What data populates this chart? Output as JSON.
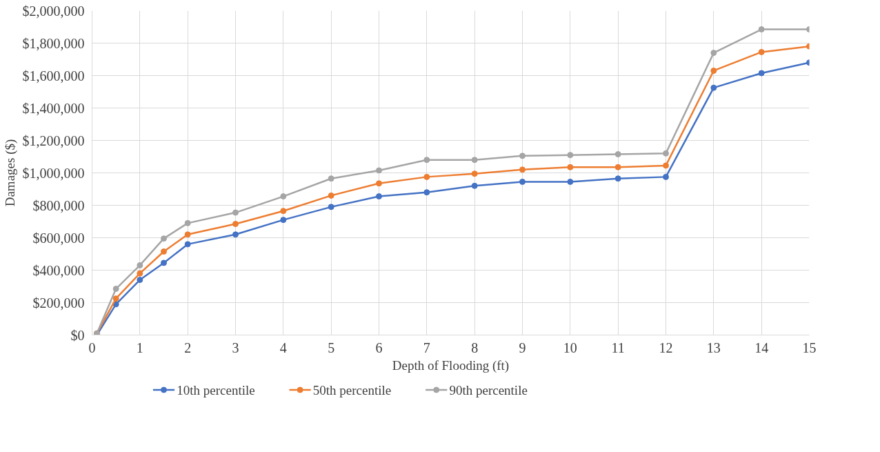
{
  "chart_data": {
    "type": "line",
    "xlabel": "Depth of Flooding (ft)",
    "ylabel": "Damages ($)",
    "x": [
      0.1,
      0.5,
      1,
      1.5,
      2,
      3,
      4,
      5,
      6,
      7,
      8,
      9,
      10,
      11,
      12,
      13,
      14,
      15
    ],
    "xlim": [
      0,
      15
    ],
    "xticks": [
      0,
      1,
      2,
      3,
      4,
      5,
      6,
      7,
      8,
      9,
      10,
      11,
      12,
      13,
      14,
      15
    ],
    "ylim": [
      0,
      2000000
    ],
    "yticks": [
      {
        "value": 0,
        "label": "$0"
      },
      {
        "value": 200000,
        "label": "$200,000"
      },
      {
        "value": 400000,
        "label": "$400,000"
      },
      {
        "value": 600000,
        "label": "$600,000"
      },
      {
        "value": 800000,
        "label": "$800,000"
      },
      {
        "value": 1000000,
        "label": "$1,000,000"
      },
      {
        "value": 1200000,
        "label": "$1,200,000"
      },
      {
        "value": 1400000,
        "label": "$1,400,000"
      },
      {
        "value": 1600000,
        "label": "$1,600,000"
      },
      {
        "value": 1800000,
        "label": "$1,800,000"
      },
      {
        "value": 2000000,
        "label": "$2,000,000"
      }
    ],
    "grid": true,
    "legend": "bottom",
    "marker": "circle",
    "line_style": "solid",
    "series": [
      {
        "name": "10th percentile",
        "color": "#4472c4",
        "values": [
          0,
          190000,
          340000,
          445000,
          560000,
          620000,
          710000,
          790000,
          855000,
          880000,
          920000,
          945000,
          945000,
          965000,
          975000,
          1525000,
          1615000,
          1680000
        ]
      },
      {
        "name": "50th percentile",
        "color": "#ed7d31",
        "values": [
          10000,
          225000,
          380000,
          515000,
          620000,
          685000,
          765000,
          860000,
          935000,
          975000,
          995000,
          1020000,
          1035000,
          1035000,
          1045000,
          1630000,
          1745000,
          1780000
        ]
      },
      {
        "name": "90th percentile",
        "color": "#a5a5a5",
        "values": [
          10000,
          285000,
          430000,
          595000,
          690000,
          755000,
          855000,
          965000,
          1015000,
          1080000,
          1080000,
          1105000,
          1110000,
          1115000,
          1120000,
          1740000,
          1885000,
          1885000
        ]
      }
    ]
  }
}
